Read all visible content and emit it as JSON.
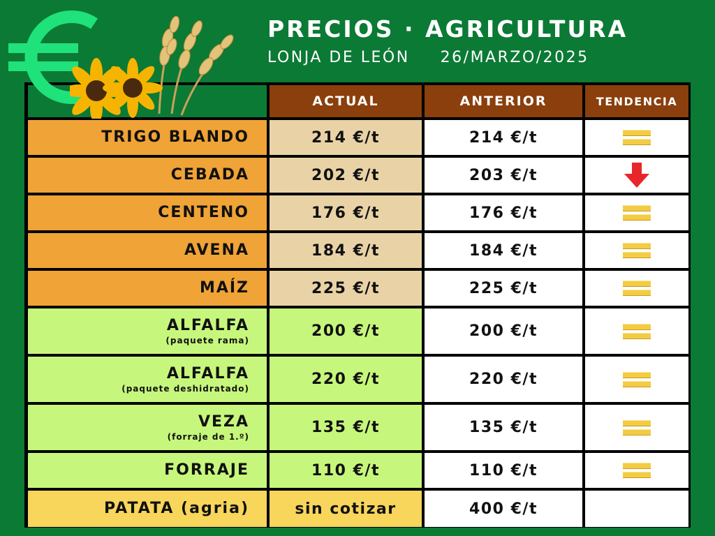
{
  "header": {
    "title": "PRECIOS · AGRICULTURA",
    "location": "LONJA DE LEÓN",
    "date": "26/MARZO/2025"
  },
  "logo": {
    "icon": "euro-icon",
    "decoration": "sunflowers-wheat"
  },
  "colors": {
    "background": "#0b7a35",
    "header": "#8a3f0c",
    "cereal_name": "#f0a336",
    "cereal_actual": "#e9d3a6",
    "forage": "#c6f77c",
    "potato": "#f8d55b",
    "white": "#ffffff",
    "equal_icon": "#f3cc44",
    "down_arrow": "#e8262a"
  },
  "table": {
    "columns": [
      "ACTUAL",
      "ANTERIOR",
      "TENDENCIA"
    ],
    "rows": [
      {
        "name": "TRIGO BLANDO",
        "sub": "",
        "actual": "214 €/t",
        "previous": "214 €/t",
        "trend": "equal"
      },
      {
        "name": "CEBADA",
        "sub": "",
        "actual": "202 €/t",
        "previous": "203 €/t",
        "trend": "down"
      },
      {
        "name": "CENTENO",
        "sub": "",
        "actual": "176 €/t",
        "previous": "176 €/t",
        "trend": "equal"
      },
      {
        "name": "AVENA",
        "sub": "",
        "actual": "184 €/t",
        "previous": "184 €/t",
        "trend": "equal"
      },
      {
        "name": "MAÍZ",
        "sub": "",
        "actual": "225 €/t",
        "previous": "225 €/t",
        "trend": "equal"
      },
      {
        "name": "ALFALFA",
        "sub": "(paquete rama)",
        "actual": "200 €/t",
        "previous": "200 €/t",
        "trend": "equal"
      },
      {
        "name": "ALFALFA",
        "sub": "(paquete deshidratado)",
        "actual": "220 €/t",
        "previous": "220 €/t",
        "trend": "equal"
      },
      {
        "name": "VEZA",
        "sub": "(forraje de 1.º)",
        "actual": "135 €/t",
        "previous": "135 €/t",
        "trend": "equal"
      },
      {
        "name": "FORRAJE",
        "sub": "",
        "actual": "110 €/t",
        "previous": "110 €/t",
        "trend": "equal"
      },
      {
        "name": "PATATA (agria)",
        "sub": "",
        "actual": "sin cotizar",
        "previous": "400 €/t",
        "trend": ""
      }
    ]
  }
}
